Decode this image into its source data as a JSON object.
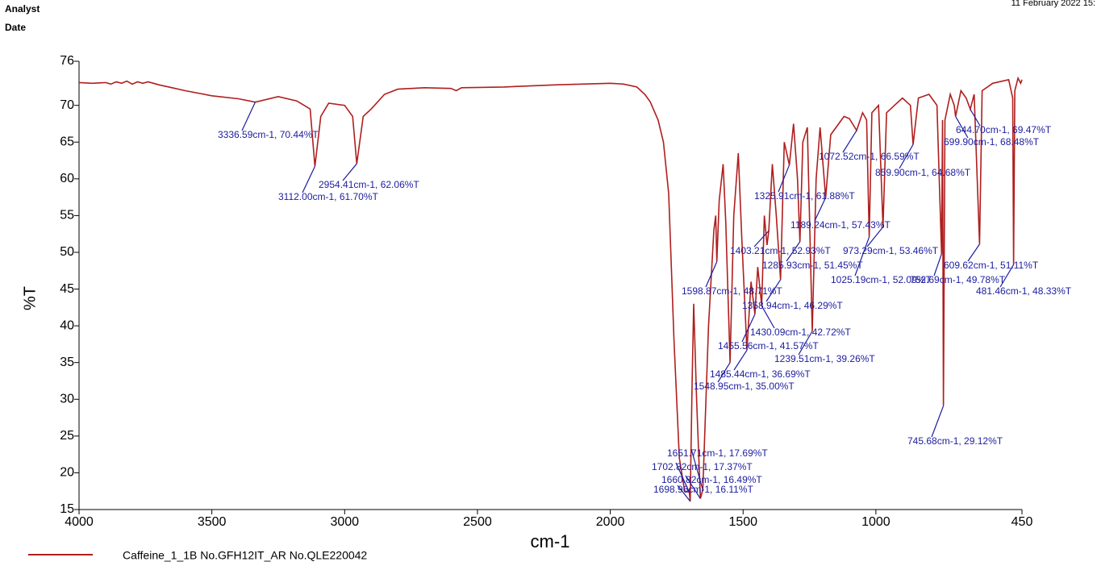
{
  "header": {
    "analyst": "Analyst",
    "date": "Date",
    "timestamp": "11 February 2022 15:"
  },
  "chart_data": {
    "type": "line",
    "xlabel": "cm-1",
    "ylabel": "%T",
    "xlim": [
      4000,
      450
    ],
    "ylim": [
      15,
      76
    ],
    "xticks": [
      4000,
      3500,
      3000,
      2500,
      2000,
      1500,
      1000,
      450
    ],
    "yticks": [
      15,
      20,
      25,
      30,
      35,
      40,
      45,
      50,
      55,
      60,
      65,
      70,
      76
    ],
    "legend_note": "B No.GFH12IT_AR No.QLE220042",
    "x": [
      4000,
      3950,
      3900,
      3880,
      3860,
      3840,
      3820,
      3800,
      3780,
      3760,
      3740,
      3720,
      3700,
      3650,
      3600,
      3500,
      3400,
      3336.59,
      3250,
      3180,
      3130,
      3112.0,
      3090,
      3060,
      3000,
      2970,
      2954.41,
      2930,
      2900,
      2850,
      2800,
      2700,
      2600,
      2580,
      2560,
      2400,
      2200,
      2000,
      1950,
      1900,
      1870,
      1850,
      1820,
      1800,
      1780,
      1760,
      1740,
      1720,
      1702.82,
      1698.96,
      1692,
      1686,
      1675,
      1660.82,
      1651.71,
      1630,
      1610,
      1603,
      1598.87,
      1590,
      1575,
      1565,
      1548.95,
      1535,
      1518,
      1505,
      1485.44,
      1470,
      1455.56,
      1445,
      1430.09,
      1420,
      1410,
      1403.21,
      1390,
      1375,
      1358.94,
      1345,
      1325.91,
      1310,
      1295,
      1285.93,
      1275,
      1258,
      1239.51,
      1225,
      1210,
      1189.24,
      1170,
      1120,
      1100,
      1072.52,
      1050,
      1035,
      1025.19,
      1015,
      990,
      973.29,
      960,
      930,
      900,
      870,
      859.9,
      840,
      800,
      770,
      752.69,
      749,
      745.68,
      740,
      720,
      705,
      699.9,
      680,
      660,
      644.7,
      630,
      609.62,
      600,
      560,
      500,
      485,
      481.46,
      477,
      465,
      455,
      450
    ],
    "series": [
      {
        "name": "Caffeine_1_1",
        "color": "#b01e1e",
        "values": [
          73.1,
          73.0,
          73.1,
          72.9,
          73.2,
          73.0,
          73.3,
          72.9,
          73.2,
          73.0,
          73.2,
          73.0,
          72.8,
          72.4,
          72.0,
          71.3,
          70.9,
          70.44,
          71.2,
          70.6,
          69.5,
          61.7,
          68.5,
          70.3,
          70.0,
          68.5,
          62.06,
          68.5,
          69.5,
          71.5,
          72.2,
          72.4,
          72.3,
          72.0,
          72.4,
          72.5,
          72.8,
          73.0,
          72.9,
          72.5,
          71.5,
          70.5,
          68.0,
          65.0,
          58.0,
          38.0,
          22.0,
          17.5,
          17.37,
          16.11,
          32.0,
          43.0,
          30.0,
          16.49,
          17.69,
          40.0,
          53.0,
          55.0,
          48.71,
          57.0,
          62.0,
          54.0,
          35.0,
          55.0,
          63.5,
          52.0,
          36.69,
          46.0,
          41.57,
          48.0,
          42.72,
          55.0,
          51.0,
          52.93,
          62.0,
          55.0,
          46.29,
          65.0,
          61.88,
          67.5,
          60.0,
          51.45,
          65.0,
          67.0,
          39.26,
          60.0,
          67.0,
          57.43,
          66.0,
          68.5,
          68.2,
          66.59,
          69.0,
          68.0,
          52.09,
          69.0,
          70.0,
          53.46,
          69.0,
          70.0,
          71.0,
          70.0,
          64.68,
          71.0,
          71.5,
          70.0,
          49.78,
          68.0,
          29.12,
          68.0,
          71.5,
          70.0,
          68.48,
          72.0,
          71.0,
          69.47,
          71.5,
          51.11,
          72.0,
          73.0,
          73.5,
          71.0,
          48.33,
          72.0,
          73.7,
          73.0,
          73.5
        ]
      }
    ],
    "annotations": [
      {
        "x": 3336.59,
        "y": 70.44,
        "label": "3336.59cm-1, 70.44%T"
      },
      {
        "x": 2954.41,
        "y": 62.06,
        "label": "2954.41cm-1, 62.06%T"
      },
      {
        "x": 3112.0,
        "y": 61.7,
        "label": "3112.00cm-1, 61.70%T"
      },
      {
        "x": 1325.91,
        "y": 61.88,
        "label": "1325.91cm-1, 61.88%T"
      },
      {
        "x": 1072.52,
        "y": 66.59,
        "label": "1072.52cm-1, 66.59%T"
      },
      {
        "x": 859.9,
        "y": 64.68,
        "label": "859.90cm-1, 64.68%T"
      },
      {
        "x": 644.7,
        "y": 69.47,
        "label": "644.70cm-1, 69.47%T"
      },
      {
        "x": 699.9,
        "y": 68.48,
        "label": "699.90cm-1, 68.48%T"
      },
      {
        "x": 1189.24,
        "y": 57.43,
        "label": "1189.24cm-1, 57.43%T"
      },
      {
        "x": 1403.21,
        "y": 52.93,
        "label": "1403.21cm-1, 52.93%T"
      },
      {
        "x": 973.29,
        "y": 53.46,
        "label": "973.29cm-1, 53.46%T"
      },
      {
        "x": 1285.93,
        "y": 51.45,
        "label": "1285.93cm-1, 51.45%T"
      },
      {
        "x": 609.62,
        "y": 51.11,
        "label": "609.62cm-1, 51.11%T"
      },
      {
        "x": 1025.19,
        "y": 52.09,
        "label": "1025.19cm-1, 52.09%T"
      },
      {
        "x": 752.69,
        "y": 49.78,
        "label": "752.69cm-1, 49.78%T"
      },
      {
        "x": 481.46,
        "y": 48.33,
        "label": "481.46cm-1, 48.33%T"
      },
      {
        "x": 1598.87,
        "y": 48.71,
        "label": "1598.87cm-1, 48.71%T"
      },
      {
        "x": 1358.94,
        "y": 46.29,
        "label": "1358.94cm-1, 46.29%T"
      },
      {
        "x": 1430.09,
        "y": 42.72,
        "label": "1430.09cm-1, 42.72%T"
      },
      {
        "x": 1455.56,
        "y": 41.57,
        "label": "1455.56cm-1, 41.57%T"
      },
      {
        "x": 1239.51,
        "y": 39.26,
        "label": "1239.51cm-1, 39.26%T"
      },
      {
        "x": 1485.44,
        "y": 36.69,
        "label": "1485.44cm-1, 36.69%T"
      },
      {
        "x": 1548.95,
        "y": 35.0,
        "label": "1548.95cm-1, 35.00%T"
      },
      {
        "x": 745.68,
        "y": 29.12,
        "label": "745.68cm-1, 29.12%T"
      },
      {
        "x": 1651.71,
        "y": 17.69,
        "label": "1651.71cm-1, 17.69%T"
      },
      {
        "x": 1702.82,
        "y": 17.37,
        "label": "1702.82cm-1, 17.37%T"
      },
      {
        "x": 1660.82,
        "y": 16.49,
        "label": "1660.82cm-1, 16.49%T"
      },
      {
        "x": 1698.96,
        "y": 16.11,
        "label": "1698.96cm-1, 16.11%T"
      }
    ]
  }
}
